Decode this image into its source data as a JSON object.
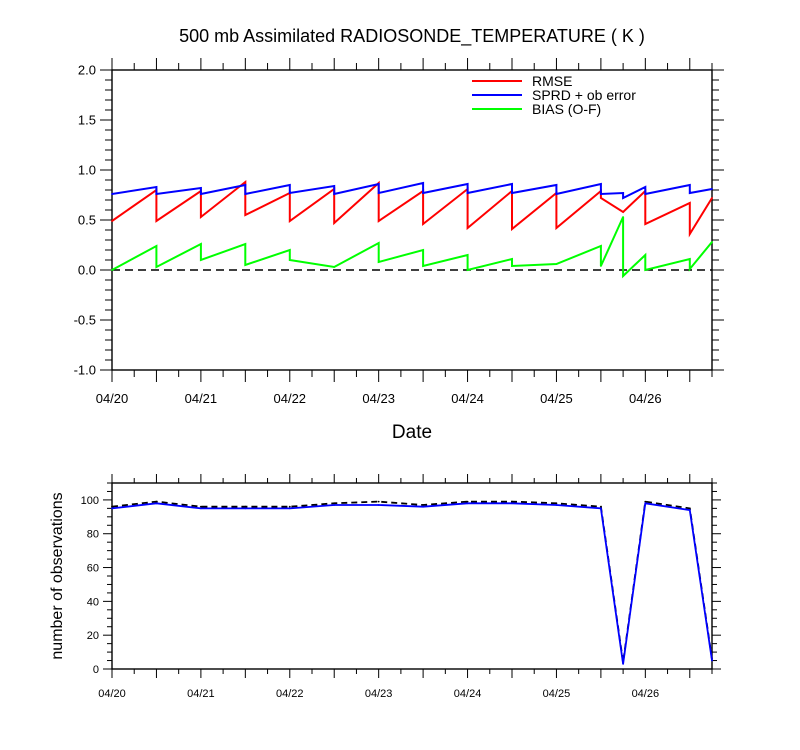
{
  "chart_data": [
    {
      "type": "line",
      "title": "500 mb Assimilated RADIOSONDE_TEMPERATURE ( K )",
      "xlabel": "Date",
      "ylabel": "",
      "x_type": "time",
      "x_range": [
        "04/20 00Z",
        "04/26 18Z"
      ],
      "x_ticklabels": [
        "04/20",
        "04/21",
        "04/22",
        "04/23",
        "04/24",
        "04/25",
        "04/26"
      ],
      "ylim": [
        -1.0,
        2.0
      ],
      "y_ticklabels": [
        "-1.0",
        "-0.5",
        "0.0",
        "0.5",
        "1.0",
        "1.5",
        "2.0"
      ],
      "legend_position": "top-right",
      "reference_line": {
        "y": 0,
        "style": "dashed",
        "color": "#000000"
      },
      "series": [
        {
          "name": "RMSE",
          "color": "#ff0000",
          "points": [
            [
              "04/20 00Z",
              0.49
            ],
            [
              "04/20 12Z",
              0.8
            ],
            [
              "04/20 12Z",
              0.49
            ],
            [
              "04/21 00Z",
              0.79
            ],
            [
              "04/21 00Z",
              0.53
            ],
            [
              "04/21 12Z",
              0.88
            ],
            [
              "04/21 12Z",
              0.55
            ],
            [
              "04/22 00Z",
              0.77
            ],
            [
              "04/22 00Z",
              0.49
            ],
            [
              "04/22 12Z",
              0.81
            ],
            [
              "04/22 12Z",
              0.47
            ],
            [
              "04/23 00Z",
              0.87
            ],
            [
              "04/23 00Z",
              0.49
            ],
            [
              "04/23 12Z",
              0.79
            ],
            [
              "04/23 12Z",
              0.46
            ],
            [
              "04/24 00Z",
              0.81
            ],
            [
              "04/24 00Z",
              0.42
            ],
            [
              "04/24 12Z",
              0.79
            ],
            [
              "04/24 12Z",
              0.41
            ],
            [
              "04/25 00Z",
              0.77
            ],
            [
              "04/25 00Z",
              0.42
            ],
            [
              "04/25 12Z",
              0.79
            ],
            [
              "04/25 12Z",
              0.72
            ],
            [
              "04/25 18Z",
              0.58
            ],
            [
              "04/26 00Z",
              0.79
            ],
            [
              "04/26 00Z",
              0.46
            ],
            [
              "04/26 12Z",
              0.67
            ],
            [
              "04/26 12Z",
              0.36
            ],
            [
              "04/26 18Z",
              0.72
            ]
          ]
        },
        {
          "name": "SPRD + ob error",
          "color": "#0000ff",
          "points": [
            [
              "04/20 00Z",
              0.76
            ],
            [
              "04/20 12Z",
              0.83
            ],
            [
              "04/20 12Z",
              0.76
            ],
            [
              "04/21 00Z",
              0.82
            ],
            [
              "04/21 00Z",
              0.76
            ],
            [
              "04/21 12Z",
              0.85
            ],
            [
              "04/21 12Z",
              0.76
            ],
            [
              "04/22 00Z",
              0.85
            ],
            [
              "04/22 00Z",
              0.77
            ],
            [
              "04/22 12Z",
              0.84
            ],
            [
              "04/22 12Z",
              0.76
            ],
            [
              "04/23 00Z",
              0.86
            ],
            [
              "04/23 00Z",
              0.77
            ],
            [
              "04/23 12Z",
              0.87
            ],
            [
              "04/23 12Z",
              0.77
            ],
            [
              "04/24 00Z",
              0.86
            ],
            [
              "04/24 00Z",
              0.77
            ],
            [
              "04/24 12Z",
              0.86
            ],
            [
              "04/24 12Z",
              0.77
            ],
            [
              "04/25 00Z",
              0.85
            ],
            [
              "04/25 00Z",
              0.76
            ],
            [
              "04/25 12Z",
              0.86
            ],
            [
              "04/25 12Z",
              0.76
            ],
            [
              "04/25 18Z",
              0.77
            ],
            [
              "04/25 18Z",
              0.72
            ],
            [
              "04/26 00Z",
              0.83
            ],
            [
              "04/26 00Z",
              0.76
            ],
            [
              "04/26 12Z",
              0.85
            ],
            [
              "04/26 12Z",
              0.77
            ],
            [
              "04/26 18Z",
              0.81
            ]
          ]
        },
        {
          "name": "BIAS (O-F)",
          "color": "#00ff00",
          "points": [
            [
              "04/20 00Z",
              0.0
            ],
            [
              "04/20 12Z",
              0.24
            ],
            [
              "04/20 12Z",
              0.03
            ],
            [
              "04/21 00Z",
              0.26
            ],
            [
              "04/21 00Z",
              0.1
            ],
            [
              "04/21 12Z",
              0.26
            ],
            [
              "04/21 12Z",
              0.05
            ],
            [
              "04/22 00Z",
              0.2
            ],
            [
              "04/22 00Z",
              0.1
            ],
            [
              "04/22 12Z",
              0.03
            ],
            [
              "04/23 00Z",
              0.27
            ],
            [
              "04/23 00Z",
              0.08
            ],
            [
              "04/23 12Z",
              0.2
            ],
            [
              "04/23 12Z",
              0.04
            ],
            [
              "04/24 00Z",
              0.15
            ],
            [
              "04/24 00Z",
              0.0
            ],
            [
              "04/24 12Z",
              0.11
            ],
            [
              "04/24 12Z",
              0.04
            ],
            [
              "04/25 00Z",
              0.06
            ],
            [
              "04/25 12Z",
              0.24
            ],
            [
              "04/25 12Z",
              0.04
            ],
            [
              "04/25 18Z",
              0.53
            ],
            [
              "04/25 18Z",
              -0.06
            ],
            [
              "04/26 00Z",
              0.15
            ],
            [
              "04/26 00Z",
              0.0
            ],
            [
              "04/26 12Z",
              0.11
            ],
            [
              "04/26 12Z",
              0.01
            ],
            [
              "04/26 18Z",
              0.28
            ]
          ]
        }
      ]
    },
    {
      "type": "line",
      "title": "",
      "xlabel": "",
      "ylabel": "number of observations",
      "x_type": "time",
      "x_range": [
        "04/20 00Z",
        "04/26 18Z"
      ],
      "x_ticklabels": [
        "04/20",
        "04/21",
        "04/22",
        "04/23",
        "04/24",
        "04/25",
        "04/26"
      ],
      "ylim": [
        0,
        110
      ],
      "y_ticklabels": [
        "0",
        "20",
        "40",
        "60",
        "80",
        "100"
      ],
      "series": [
        {
          "style": "dashed",
          "color": "#000000",
          "points": [
            [
              "04/20 00Z",
              96
            ],
            [
              "04/20 12Z",
              99
            ],
            [
              "04/21 00Z",
              96
            ],
            [
              "04/21 12Z",
              96
            ],
            [
              "04/22 00Z",
              96
            ],
            [
              "04/22 12Z",
              98
            ],
            [
              "04/23 00Z",
              99
            ],
            [
              "04/23 12Z",
              97
            ],
            [
              "04/24 00Z",
              99
            ],
            [
              "04/24 12Z",
              99
            ],
            [
              "04/25 00Z",
              98
            ],
            [
              "04/25 12Z",
              96
            ],
            [
              "04/25 18Z",
              4
            ],
            [
              "04/26 00Z",
              99
            ],
            [
              "04/26 12Z",
              95
            ],
            [
              "04/26 18Z",
              6
            ]
          ]
        },
        {
          "style": "solid",
          "color": "#0000ff",
          "points": [
            [
              "04/20 00Z",
              95
            ],
            [
              "04/20 12Z",
              98
            ],
            [
              "04/21 00Z",
              95
            ],
            [
              "04/21 12Z",
              95
            ],
            [
              "04/22 00Z",
              95
            ],
            [
              "04/22 12Z",
              97
            ],
            [
              "04/23 00Z",
              97
            ],
            [
              "04/23 12Z",
              96
            ],
            [
              "04/24 00Z",
              98
            ],
            [
              "04/24 12Z",
              98
            ],
            [
              "04/25 00Z",
              97
            ],
            [
              "04/25 12Z",
              95
            ],
            [
              "04/25 18Z",
              3
            ],
            [
              "04/26 00Z",
              98
            ],
            [
              "04/26 12Z",
              94
            ],
            [
              "04/26 18Z",
              5
            ]
          ]
        }
      ]
    }
  ]
}
